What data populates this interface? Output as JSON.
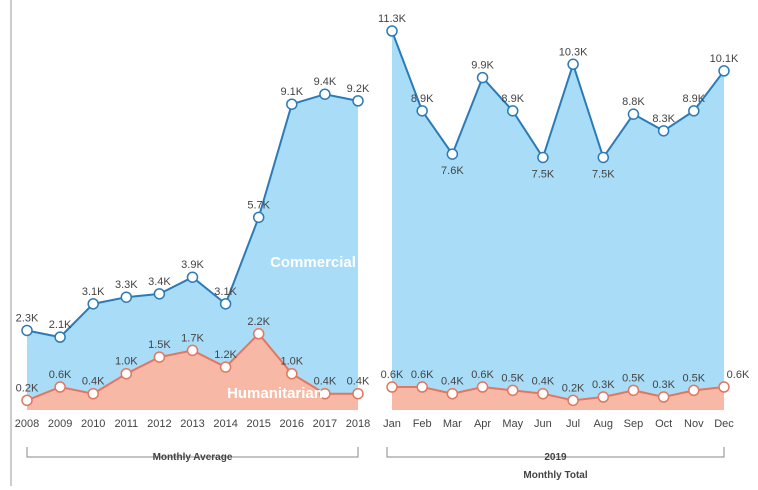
{
  "chart_data": [
    {
      "type": "area",
      "categories": [
        "2008",
        "2009",
        "2010",
        "2011",
        "2012",
        "2013",
        "2014",
        "2015",
        "2016",
        "2017",
        "2018"
      ],
      "series": [
        {
          "name": "Commercial",
          "color": "#2b7bb9",
          "fill": "#a9dcf7",
          "values": [
            2300,
            2100,
            3100,
            3300,
            3400,
            3900,
            3100,
            5700,
            9100,
            9400,
            9200
          ],
          "value_labels": [
            "2.3K",
            "2.1K",
            "3.1K",
            "3.3K",
            "3.4K",
            "3.9K",
            "3.1K",
            "5.7K",
            "9.1K",
            "9.4K",
            "9.2K"
          ]
        },
        {
          "name": "Humanitarian",
          "color": "#e2765f",
          "fill": "#f7b9a5",
          "values": [
            200,
            600,
            400,
            1000,
            1500,
            1700,
            1200,
            2200,
            1000,
            400,
            400
          ],
          "value_labels": [
            "0.2K",
            "0.6K",
            "0.4K",
            "1.0K",
            "1.5K",
            "1.7K",
            "1.2K",
            "2.2K",
            "1.0K",
            "0.4K",
            "0.4K"
          ]
        }
      ],
      "group_label": "Monthly Average"
    },
    {
      "type": "area",
      "categories": [
        "Jan",
        "Feb",
        "Mar",
        "Apr",
        "May",
        "Jun",
        "Jul",
        "Aug",
        "Sep",
        "Oct",
        "Nov",
        "Dec"
      ],
      "series": [
        {
          "color": "#2b7bb9",
          "fill": "#a9dcf7",
          "values": [
            11300,
            8900,
            7600,
            9900,
            8900,
            7500,
            10300,
            7500,
            8800,
            8300,
            8900,
            10100
          ],
          "value_labels": [
            "11.3K",
            "8.9K",
            "7.6K",
            "9.9K",
            "8.9K",
            "7.5K",
            "10.3K",
            "7.5K",
            "8.8K",
            "8.3K",
            "8.9K",
            "10.1K"
          ]
        },
        {
          "color": "#e2765f",
          "fill": "#f7b9a5",
          "values": [
            600,
            600,
            400,
            600,
            500,
            400,
            200,
            300,
            500,
            300,
            500,
            600
          ],
          "value_labels": [
            "0.6K",
            "0.6K",
            "0.4K",
            "0.6K",
            "0.5K",
            "0.4K",
            "0.2K",
            "0.3K",
            "0.5K",
            "0.3K",
            "0.5K",
            "0.6K"
          ]
        }
      ],
      "group_label": "2019",
      "group_sublabel": "Monthly Total"
    }
  ]
}
